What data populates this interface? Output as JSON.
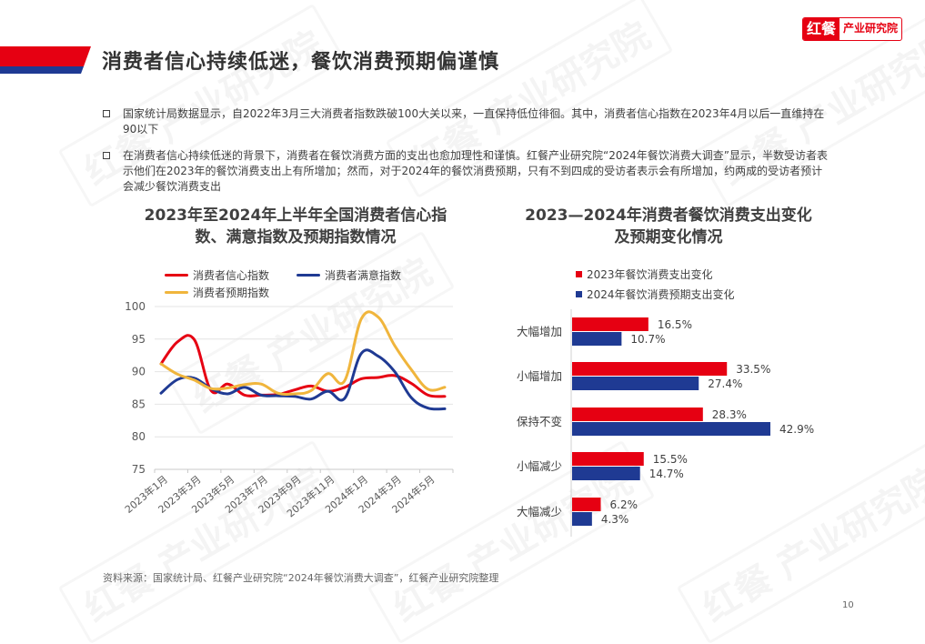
{
  "header": {
    "title": "消费者信心持续低迷，餐饮消费预期偏谨慎",
    "logo_brand": "红餐",
    "logo_org": "产业研究院",
    "accent_red": "#e60012",
    "accent_blue": "#1f3a93"
  },
  "bullets": [
    {
      "text": "国家统计局数据显示，自2022年3月三大消费者指数跌破100大关以来，一直保持低位徘徊。其中，消费者信心指数在2023年4月以后一直维持在90以下"
    },
    {
      "text": "在消费者信心持续低迷的背景下，消费者在餐饮消费方面的支出也愈加理性和谨慎。红餐产业研究院“2024年餐饮消费大调查”显示，半数受访者表示他们在2023年的餐饮消费支出上有所增加；然而，对于2024年的餐饮消费预期，只有不到四成的受访者表示会有所增加，约两成的受访者预计会减少餐饮消费支出"
    }
  ],
  "watermark_text": "红餐 产业研究院",
  "chart_data": [
    {
      "type": "line",
      "title": "2023年至2024年上半年全国消费者信心指数、满意指数及预期指数情况",
      "title_lines": [
        "2023年至2024年上半年全国消费者信心指",
        "数、满意指数及预期指数情况"
      ],
      "x": [
        "2023年1月",
        "2023年2月",
        "2023年3月",
        "2023年4月",
        "2023年5月",
        "2023年6月",
        "2023年7月",
        "2023年8月",
        "2023年9月",
        "2023年10月",
        "2023年11月",
        "2023年12月",
        "2024年1月",
        "2024年2月",
        "2024年3月",
        "2024年4月",
        "2024年5月",
        "2024年6月"
      ],
      "x_tick_labels": [
        "2023年1月",
        "2023年3月",
        "2023年5月",
        "2023年7月",
        "2023年9月",
        "2023年11月",
        "2024年1月",
        "2024年3月",
        "2024年5月"
      ],
      "series": [
        {
          "name": "消费者信心指数",
          "color": "#e60012",
          "values": [
            91.2,
            94.6,
            94.9,
            87.1,
            88.1,
            86.4,
            86.4,
            86.5,
            87.2,
            87.8,
            87.0,
            87.6,
            88.9,
            89.1,
            89.4,
            88.2,
            86.4,
            86.2
          ]
        },
        {
          "name": "消费者满意指数",
          "color": "#1f3a93",
          "values": [
            86.7,
            88.8,
            89.0,
            87.4,
            86.6,
            87.6,
            86.4,
            86.3,
            86.2,
            85.8,
            87.0,
            85.9,
            92.8,
            92.4,
            90.0,
            86.0,
            84.4,
            84.3
          ]
        },
        {
          "name": "消费者预期指数",
          "color": "#f0b53c",
          "values": [
            91.2,
            89.6,
            88.7,
            87.4,
            87.5,
            88.0,
            88.1,
            86.7,
            86.6,
            87.1,
            89.7,
            88.6,
            98.1,
            98.4,
            94.0,
            90.3,
            87.3,
            87.6
          ]
        }
      ],
      "ylim": [
        75,
        100
      ],
      "yticks": [
        75,
        80,
        85,
        90,
        95,
        100
      ],
      "xlabel": "",
      "ylabel": "",
      "grid": true,
      "legend_position": "top"
    },
    {
      "type": "bar",
      "orientation": "horizontal",
      "title": "2023—2024年消费者餐饮消费支出变化及预期变化情况",
      "title_lines": [
        "2023—2024年消费者餐饮消费支出变化",
        "及预期变化情况"
      ],
      "categories": [
        "大幅增加",
        "小幅增加",
        "保持不变",
        "小幅减少",
        "大幅减少"
      ],
      "series": [
        {
          "name": "2023年餐饮消费支出变化",
          "color": "#e60012",
          "values": [
            16.5,
            33.5,
            28.3,
            15.5,
            6.2
          ],
          "labels": [
            "16.5%",
            "33.5%",
            "28.3%",
            "15.5%",
            "6.2%"
          ]
        },
        {
          "name": "2024年餐饮消费预期支出变化",
          "color": "#1f3a93",
          "values": [
            10.7,
            27.4,
            42.9,
            14.7,
            4.3
          ],
          "labels": [
            "10.7%",
            "27.4%",
            "42.9%",
            "14.7%",
            "4.3%"
          ]
        }
      ],
      "unit": "%",
      "grid": false,
      "legend_position": "top"
    }
  ],
  "footer": {
    "source": "资料来源：国家统计局、红餐产业研究院“2024年餐饮消费大调查”，红餐产业研究院整理",
    "page_number": "10"
  }
}
